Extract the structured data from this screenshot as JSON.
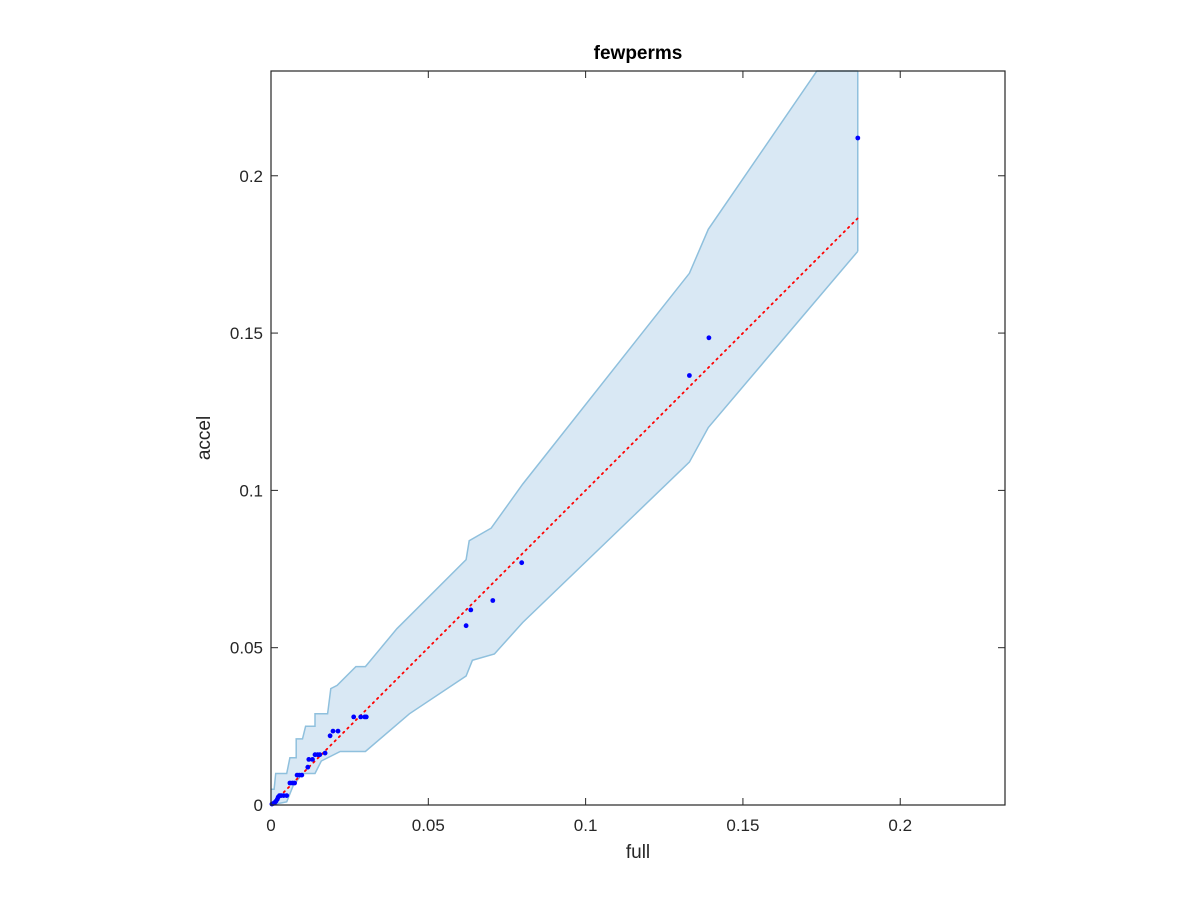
{
  "chart_data": {
    "type": "scatter",
    "title": "fewperms",
    "xlabel": "full",
    "ylabel": "accel",
    "xlim": [
      0,
      0.2333
    ],
    "ylim": [
      0,
      0.2333
    ],
    "grid": false,
    "x_ticks": [
      {
        "value": 0,
        "label": "0"
      },
      {
        "value": 0.05,
        "label": "0.05"
      },
      {
        "value": 0.1,
        "label": "0.1"
      },
      {
        "value": 0.15,
        "label": "0.15"
      },
      {
        "value": 0.2,
        "label": "0.2"
      }
    ],
    "y_ticks": [
      {
        "value": 0,
        "label": "0"
      },
      {
        "value": 0.05,
        "label": "0.05"
      },
      {
        "value": 0.1,
        "label": "0.1"
      },
      {
        "value": 0.15,
        "label": "0.15"
      },
      {
        "value": 0.2,
        "label": "0.2"
      }
    ],
    "band": {
      "color": "#d9e8f4",
      "edge_color": "#8fc0dd",
      "upper": [
        [
          0,
          0.005
        ],
        [
          0.001,
          0.005
        ],
        [
          0.0015,
          0.01
        ],
        [
          0.005,
          0.01
        ],
        [
          0.006,
          0.015
        ],
        [
          0.008,
          0.015
        ],
        [
          0.008,
          0.021
        ],
        [
          0.01,
          0.021
        ],
        [
          0.011,
          0.025
        ],
        [
          0.014,
          0.025
        ],
        [
          0.014,
          0.029
        ],
        [
          0.018,
          0.029
        ],
        [
          0.019,
          0.037
        ],
        [
          0.021,
          0.038
        ],
        [
          0.027,
          0.044
        ],
        [
          0.03,
          0.044
        ],
        [
          0.04,
          0.056
        ],
        [
          0.062,
          0.078
        ],
        [
          0.063,
          0.084
        ],
        [
          0.07,
          0.088
        ],
        [
          0.08,
          0.102
        ],
        [
          0.133,
          0.169
        ],
        [
          0.139,
          0.183
        ],
        [
          0.1735,
          0.2333
        ],
        [
          0.1865,
          0.2333
        ]
      ],
      "lower": [
        [
          0,
          0
        ],
        [
          0.005,
          0.001
        ],
        [
          0.007,
          0.006
        ],
        [
          0.01,
          0.01
        ],
        [
          0.014,
          0.01
        ],
        [
          0.016,
          0.014
        ],
        [
          0.022,
          0.017
        ],
        [
          0.03,
          0.017
        ],
        [
          0.044,
          0.029
        ],
        [
          0.062,
          0.041
        ],
        [
          0.064,
          0.046
        ],
        [
          0.071,
          0.048
        ],
        [
          0.08,
          0.058
        ],
        [
          0.133,
          0.109
        ],
        [
          0.139,
          0.12
        ],
        [
          0.1865,
          0.176
        ]
      ]
    },
    "series": [
      {
        "color": "#0000ff",
        "x": [
          0.0003,
          0.0008,
          0.0012,
          0.0016,
          0.002,
          0.0023,
          0.0027,
          0.0032,
          0.004,
          0.005,
          0.006,
          0.0068,
          0.0075,
          0.0083,
          0.009,
          0.0098,
          0.0117,
          0.012,
          0.0132,
          0.014,
          0.0148,
          0.0155,
          0.0172,
          0.0188,
          0.0197,
          0.0213,
          0.0263,
          0.0285,
          0.0298,
          0.0303,
          0.062,
          0.0635,
          0.0705,
          0.0797,
          0.133,
          0.1392,
          0.1865
        ],
        "y": [
          0.0003,
          0.0005,
          0.0008,
          0.0012,
          0.0018,
          0.0025,
          0.003,
          0.003,
          0.003,
          0.003,
          0.007,
          0.007,
          0.007,
          0.0095,
          0.0095,
          0.0095,
          0.012,
          0.0145,
          0.0145,
          0.016,
          0.016,
          0.016,
          0.0165,
          0.022,
          0.0235,
          0.0235,
          0.028,
          0.028,
          0.028,
          0.028,
          0.057,
          0.062,
          0.065,
          0.077,
          0.1365,
          0.1485,
          0.212
        ]
      },
      {
        "type": "line",
        "style": "dotted",
        "color": "#ff0000",
        "x": [
          0,
          0.1865
        ],
        "y": [
          0,
          0.1865
        ]
      }
    ]
  }
}
